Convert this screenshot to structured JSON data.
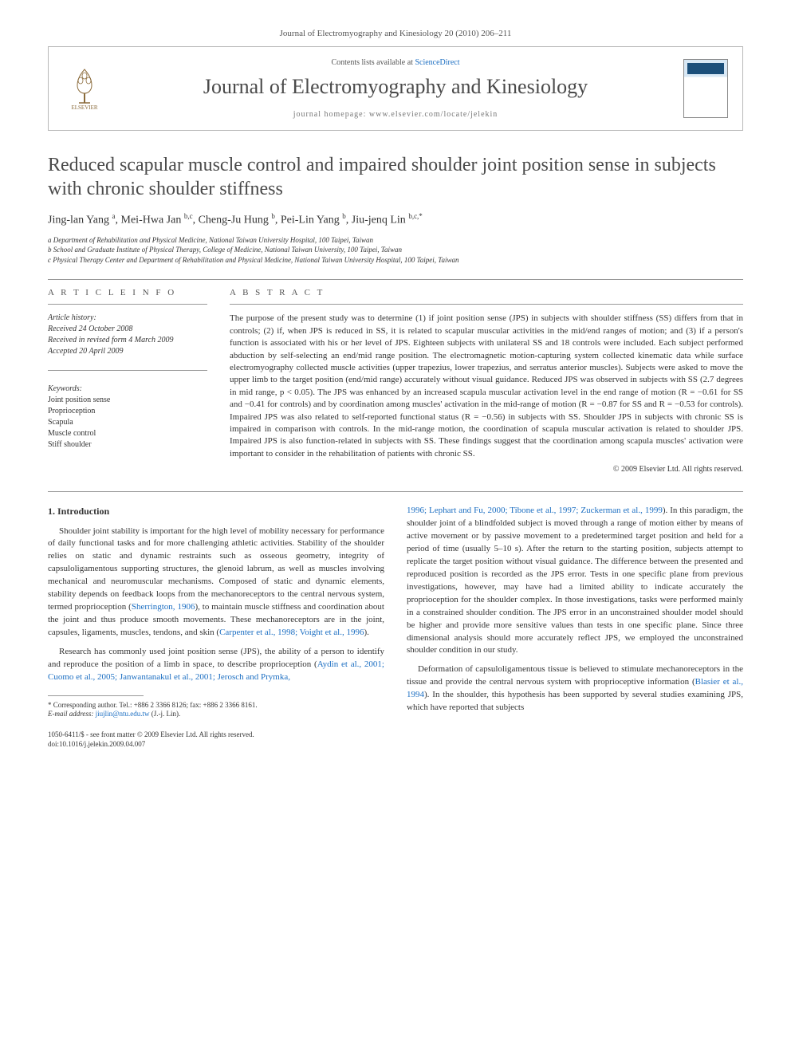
{
  "header_bar": "Journal of Electromyography and Kinesiology 20 (2010) 206–211",
  "panel": {
    "contents_prefix": "Contents lists available at ",
    "contents_link": "ScienceDirect",
    "journal_name": "Journal of Electromyography and Kinesiology",
    "homepage_prefix": "journal homepage: ",
    "homepage_url": "www.elsevier.com/locate/jelekin"
  },
  "title": "Reduced scapular muscle control and impaired shoulder joint position sense in subjects with chronic shoulder stiffness",
  "authors_html": "Jing-lan Yang <sup>a</sup>, Mei-Hwa Jan <sup>b,c</sup>, Cheng-Ju Hung <sup>b</sup>, Pei-Lin Yang <sup>b</sup>, Jiu-jenq Lin <sup>b,c,*</sup>",
  "affiliations": [
    "a Department of Rehabilitation and Physical Medicine, National Taiwan University Hospital, 100 Taipei, Taiwan",
    "b School and Graduate Institute of Physical Therapy, College of Medicine, National Taiwan University, 100 Taipei, Taiwan",
    "c Physical Therapy Center and Department of Rehabilitation and Physical Medicine, National Taiwan University Hospital, 100 Taipei, Taiwan"
  ],
  "info": {
    "article_info_label": "A R T I C L E   I N F O",
    "history_label": "Article history:",
    "received": "Received 24 October 2008",
    "revised": "Received in revised form 4 March 2009",
    "accepted": "Accepted 20 April 2009",
    "keywords_label": "Keywords:",
    "keywords": [
      "Joint position sense",
      "Proprioception",
      "Scapula",
      "Muscle control",
      "Stiff shoulder"
    ]
  },
  "abstract": {
    "label": "A B S T R A C T",
    "text": "The purpose of the present study was to determine (1) if joint position sense (JPS) in subjects with shoulder stiffness (SS) differs from that in controls; (2) if, when JPS is reduced in SS, it is related to scapular muscular activities in the mid/end ranges of motion; and (3) if a person's function is associated with his or her level of JPS. Eighteen subjects with unilateral SS and 18 controls were included. Each subject performed abduction by self-selecting an end/mid range position. The electromagnetic motion-capturing system collected kinematic data while surface electromyography collected muscle activities (upper trapezius, lower trapezius, and serratus anterior muscles). Subjects were asked to move the upper limb to the target position (end/mid range) accurately without visual guidance. Reduced JPS was observed in subjects with SS (2.7 degrees in mid range, p < 0.05). The JPS was enhanced by an increased scapula muscular activation level in the end range of motion (R = −0.61 for SS and −0.41 for controls) and by coordination among muscles' activation in the mid-range of motion (R = −0.87 for SS and R = −0.53 for controls). Impaired JPS was also related to self-reported functional status (R = −0.56) in subjects with SS. Shoulder JPS in subjects with chronic SS is impaired in comparison with controls. In the mid-range motion, the coordination of scapula muscular activation is related to shoulder JPS. Impaired JPS is also function-related in subjects with SS. These findings suggest that the coordination among scapula muscles' activation were important to consider in the rehabilitation of patients with chronic SS.",
    "copyright": "© 2009 Elsevier Ltd. All rights reserved."
  },
  "body": {
    "intro_heading": "1. Introduction",
    "p1": "Shoulder joint stability is important for the high level of mobility necessary for performance of daily functional tasks and for more challenging athletic activities. Stability of the shoulder relies on static and dynamic restraints such as osseous geometry, integrity of capsuloligamentous supporting structures, the glenoid labrum, as well as muscles involving mechanical and neuromuscular mechanisms. Composed of static and dynamic elements, stability depends on feedback loops from the mechanoreceptors to the central nervous system, termed proprioception (",
    "p1_ref1": "Sherrington, 1906",
    "p1b": "), to maintain muscle stiffness and coordination about the joint and thus produce smooth movements. These mechanoreceptors are in the joint, capsules, ligaments, muscles, tendons, and skin (",
    "p1_ref2": "Carpenter et al., 1998; Voight et al., 1996",
    "p1c": ").",
    "p2a": "Research has commonly used joint position sense (JPS), the ability of a person to identify and reproduce the position of a limb in space, to describe proprioception (",
    "p2_ref1": "Aydin et al., 2001; Cuomo et al., 2005; Janwantanakul et al., 2001; Jerosch and Prymka,",
    "p2_ref1_cont": "1996; Lephart and Fu, 2000; Tibone et al., 1997; Zuckerman et al., 1999",
    "p2b": "). In this paradigm, the shoulder joint of a blindfolded subject is moved through a range of motion either by means of active movement or by passive movement to a predetermined target position and held for a period of time (usually 5–10 s). After the return to the starting position, subjects attempt to replicate the target position without visual guidance. The difference between the presented and reproduced position is recorded as the JPS error. Tests in one specific plane from previous investigations, however, may have had a limited ability to indicate accurately the proprioception for the shoulder complex. In those investigations, tasks were performed mainly in a constrained shoulder condition. The JPS error in an unconstrained shoulder model should be higher and provide more sensitive values than tests in one specific plane. Since three dimensional analysis should more accurately reflect JPS, we employed the unconstrained shoulder condition in our study.",
    "p3a": "Deformation of capsuloligamentous tissue is believed to stimulate mechanoreceptors in the tissue and provide the central nervous system with proprioceptive information (",
    "p3_ref1": "Blasier et al., 1994",
    "p3b": "). In the shoulder, this hypothesis has been supported by several studies examining JPS, which have reported that subjects"
  },
  "footnote": {
    "corr": "* Corresponding author. Tel.: +886 2 3366 8126; fax: +886 2 3366 8161.",
    "email_label": "E-mail address:",
    "email": "jiujlin@ntu.edu.tw",
    "email_person": "(J.-j. Lin)."
  },
  "footer": {
    "line1": "1050-6411/$ - see front matter © 2009 Elsevier Ltd. All rights reserved.",
    "line2": "doi:10.1016/j.jelekin.2009.04.007"
  },
  "colors": {
    "text": "#333333",
    "link": "#1b6ec2",
    "border": "#b8b8b8",
    "muted": "#555555"
  }
}
